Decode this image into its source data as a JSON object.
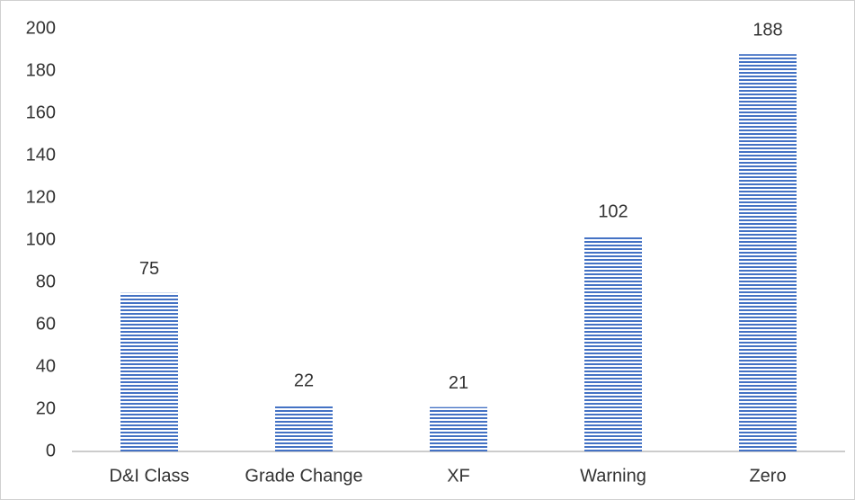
{
  "chart_data": {
    "type": "bar",
    "categories": [
      "D&I Class",
      "Grade Change",
      "XF",
      "Warning",
      "Zero"
    ],
    "values": [
      75,
      22,
      21,
      102,
      188
    ],
    "color": "#4472c4",
    "ylim": [
      0,
      200
    ],
    "yticks": [
      0,
      20,
      40,
      60,
      80,
      100,
      120,
      140,
      160,
      180,
      200
    ],
    "grid": false
  }
}
